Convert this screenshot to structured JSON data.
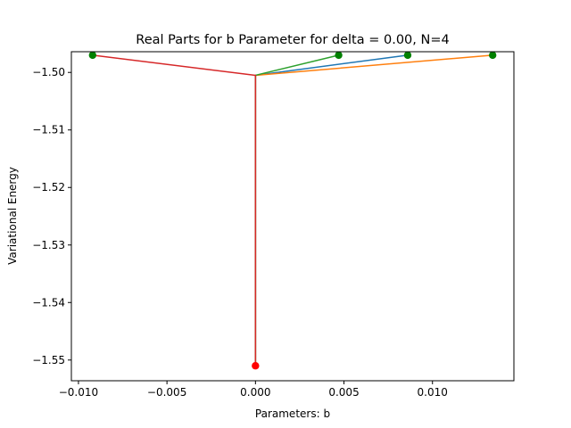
{
  "chart_data": {
    "type": "line",
    "title": "Real Parts for b Parameter for delta = 0.00, N=4",
    "xlabel": "Parameters: b",
    "ylabel": "Variational Energy",
    "xlim": [
      -0.0104,
      0.0146
    ],
    "ylim": [
      -1.5536,
      -1.4964
    ],
    "x_ticks": [
      -0.01,
      -0.005,
      0.0,
      0.005,
      0.01
    ],
    "x_tick_labels": [
      "−0.010",
      "−0.005",
      "0.000",
      "0.005",
      "0.010"
    ],
    "y_ticks": [
      -1.5,
      -1.51,
      -1.52,
      -1.53,
      -1.54,
      -1.55
    ],
    "y_tick_labels": [
      "−1.50",
      "−1.51",
      "−1.52",
      "−1.53",
      "−1.54",
      "−1.55"
    ],
    "grid": false,
    "series": [
      {
        "color": "#1f77b4",
        "x": [
          0.0,
          0.0,
          0.0086
        ],
        "y": [
          -1.551,
          -1.5005,
          -1.497
        ]
      },
      {
        "color": "#ff7f0e",
        "x": [
          0.0,
          0.0,
          0.0134
        ],
        "y": [
          -1.551,
          -1.5005,
          -1.497
        ]
      },
      {
        "color": "#2ca02c",
        "x": [
          0.0,
          0.0,
          0.0047
        ],
        "y": [
          -1.551,
          -1.5005,
          -1.497
        ]
      },
      {
        "color": "#d62728",
        "x": [
          0.0,
          0.0,
          -0.0092
        ],
        "y": [
          -1.551,
          -1.5005,
          -1.497
        ]
      }
    ],
    "markers": [
      {
        "color": "#008000",
        "x": 0.0086,
        "y": -1.497
      },
      {
        "color": "#008000",
        "x": 0.0134,
        "y": -1.497
      },
      {
        "color": "#008000",
        "x": 0.0047,
        "y": -1.497
      },
      {
        "color": "#008000",
        "x": -0.0092,
        "y": -1.497
      },
      {
        "color": "#ff0000",
        "x": 0.0,
        "y": -1.551
      }
    ]
  }
}
